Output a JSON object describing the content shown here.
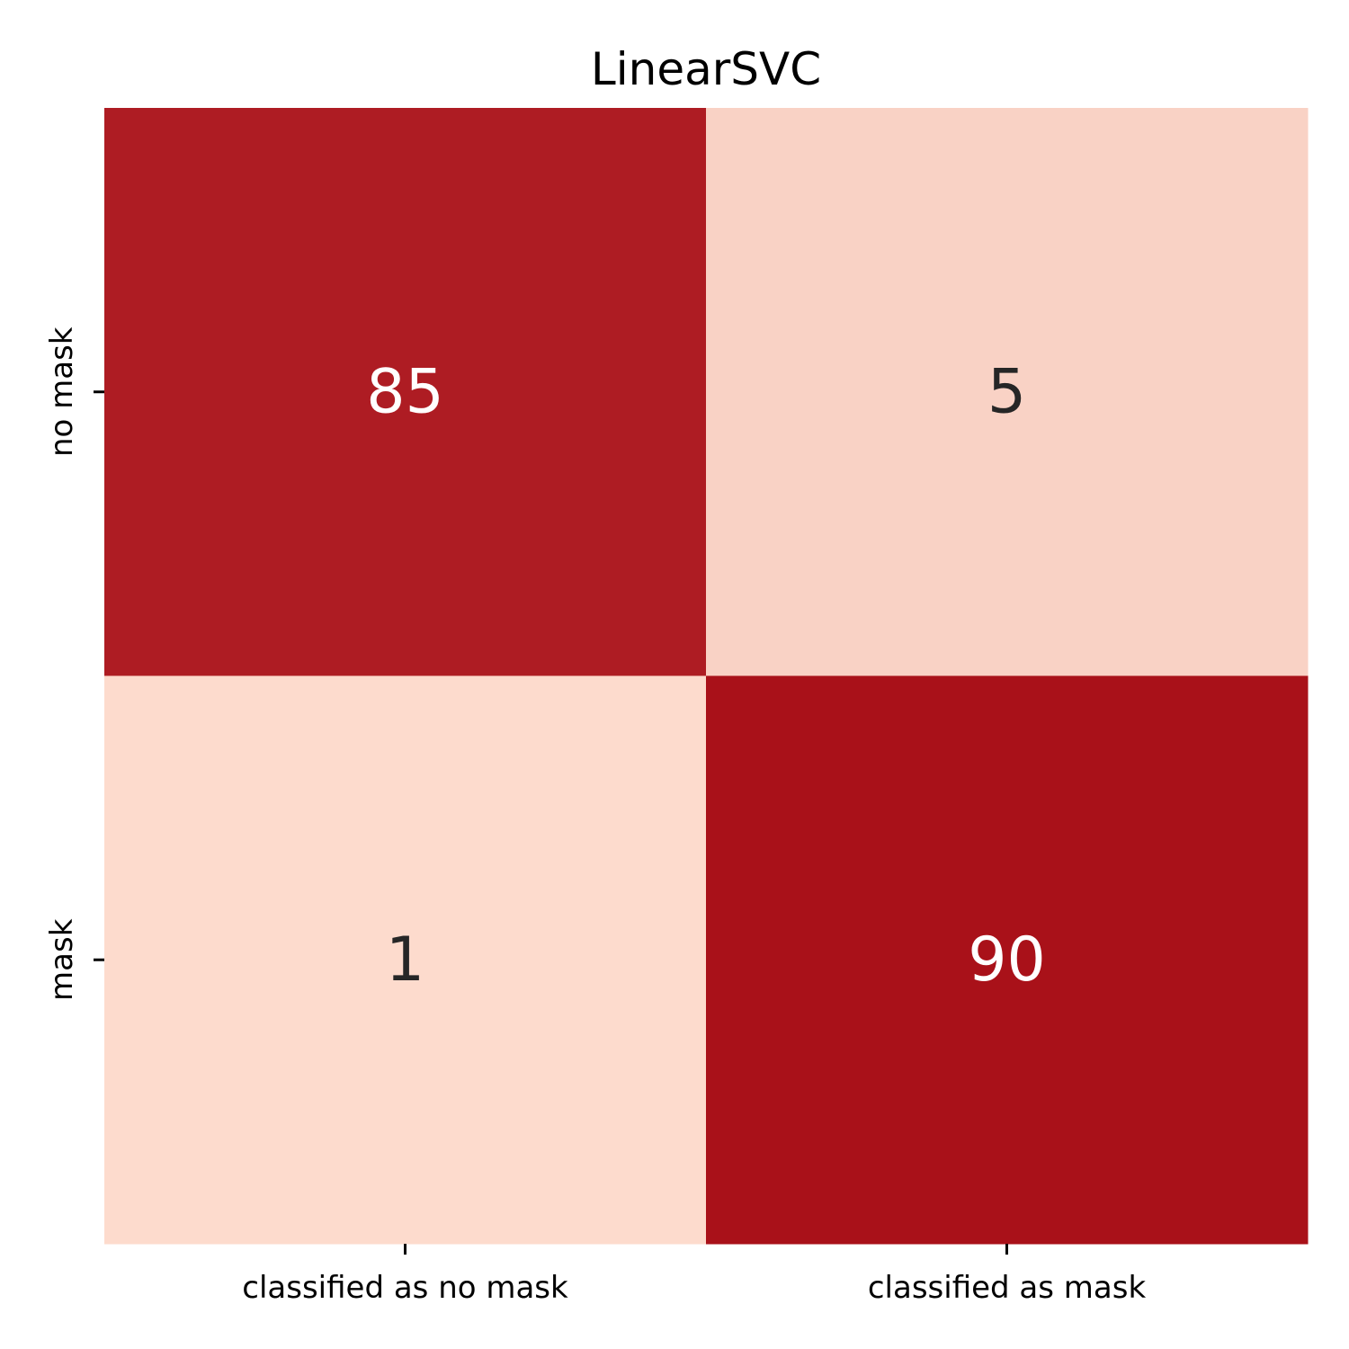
{
  "chart_data": {
    "type": "heatmap",
    "title": "LinearSVC",
    "xlabel": "",
    "ylabel": "",
    "x_categories": [
      "classified as no mask",
      "classified as mask"
    ],
    "y_categories": [
      "no mask",
      "mask"
    ],
    "values": [
      [
        85,
        5
      ],
      [
        1,
        90
      ]
    ],
    "colorbar": false,
    "grid": false,
    "colors": {
      "high": "#a91119",
      "low": "#fddbcd",
      "text_on_high": "#ffffff",
      "text_on_low": "#262626"
    }
  }
}
